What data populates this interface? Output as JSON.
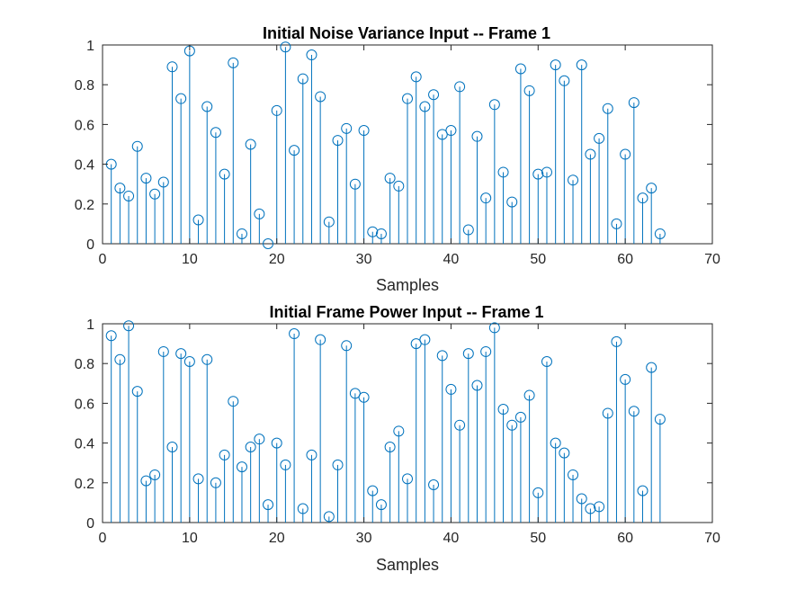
{
  "colors": {
    "series": "#0072bd",
    "axes": "#262626",
    "background": "#ffffff"
  },
  "chart_data": [
    {
      "type": "stem",
      "title": "Initial Noise Variance Input -- Frame 1",
      "xlabel": "Samples",
      "ylabel": "",
      "xlim": [
        0,
        70
      ],
      "ylim": [
        0,
        1
      ],
      "xticks": [
        0,
        10,
        20,
        30,
        40,
        50,
        60,
        70
      ],
      "yticks": [
        0,
        0.2,
        0.4,
        0.6,
        0.8,
        1
      ],
      "xtick_labels": [
        "0",
        "10",
        "20",
        "30",
        "40",
        "50",
        "60",
        "70"
      ],
      "ytick_labels": [
        "0",
        "0.2",
        "0.4",
        "0.6",
        "0.8",
        "1"
      ],
      "grid": false,
      "marker": "circle",
      "x": [
        1,
        2,
        3,
        4,
        5,
        6,
        7,
        8,
        9,
        10,
        11,
        12,
        13,
        14,
        15,
        16,
        17,
        18,
        19,
        20,
        21,
        22,
        23,
        24,
        25,
        26,
        27,
        28,
        29,
        30,
        31,
        32,
        33,
        34,
        35,
        36,
        37,
        38,
        39,
        40,
        41,
        42,
        43,
        44,
        45,
        46,
        47,
        48,
        49,
        50,
        51,
        52,
        53,
        54,
        55,
        56,
        57,
        58,
        59,
        60,
        61,
        62,
        63,
        64
      ],
      "values": [
        0.4,
        0.28,
        0.24,
        0.49,
        0.33,
        0.25,
        0.31,
        0.89,
        0.73,
        0.97,
        0.12,
        0.69,
        0.56,
        0.35,
        0.91,
        0.05,
        0.5,
        0.15,
        0.0,
        0.67,
        0.99,
        0.47,
        0.83,
        0.95,
        0.74,
        0.11,
        0.52,
        0.58,
        0.3,
        0.57,
        0.06,
        0.05,
        0.33,
        0.29,
        0.73,
        0.84,
        0.69,
        0.75,
        0.55,
        0.57,
        0.79,
        0.07,
        0.54,
        0.23,
        0.7,
        0.36,
        0.21,
        0.88,
        0.77,
        0.35,
        0.36,
        0.9,
        0.82,
        0.32,
        0.9,
        0.45,
        0.53,
        0.68,
        0.1,
        0.45,
        0.71,
        0.23,
        0.28,
        0.05
      ]
    },
    {
      "type": "stem",
      "title": "Initial Frame Power Input -- Frame 1",
      "xlabel": "Samples",
      "ylabel": "",
      "xlim": [
        0,
        70
      ],
      "ylim": [
        0,
        1
      ],
      "xticks": [
        0,
        10,
        20,
        30,
        40,
        50,
        60,
        70
      ],
      "yticks": [
        0,
        0.2,
        0.4,
        0.6,
        0.8,
        1
      ],
      "xtick_labels": [
        "0",
        "10",
        "20",
        "30",
        "40",
        "50",
        "60",
        "70"
      ],
      "ytick_labels": [
        "0",
        "0.2",
        "0.4",
        "0.6",
        "0.8",
        "1"
      ],
      "grid": false,
      "marker": "circle",
      "x": [
        1,
        2,
        3,
        4,
        5,
        6,
        7,
        8,
        9,
        10,
        11,
        12,
        13,
        14,
        15,
        16,
        17,
        18,
        19,
        20,
        21,
        22,
        23,
        24,
        25,
        26,
        27,
        28,
        29,
        30,
        31,
        32,
        33,
        34,
        35,
        36,
        37,
        38,
        39,
        40,
        41,
        42,
        43,
        44,
        45,
        46,
        47,
        48,
        49,
        50,
        51,
        52,
        53,
        54,
        55,
        56,
        57,
        58,
        59,
        60,
        61,
        62,
        63,
        64
      ],
      "values": [
        0.94,
        0.82,
        0.99,
        0.66,
        0.21,
        0.24,
        0.86,
        0.38,
        0.85,
        0.81,
        0.22,
        0.82,
        0.2,
        0.34,
        0.61,
        0.28,
        0.38,
        0.42,
        0.09,
        0.4,
        0.29,
        0.95,
        0.07,
        0.34,
        0.92,
        0.03,
        0.29,
        0.89,
        0.65,
        0.63,
        0.16,
        0.09,
        0.38,
        0.46,
        0.22,
        0.9,
        0.92,
        0.19,
        0.84,
        0.67,
        0.49,
        0.85,
        0.69,
        0.86,
        0.98,
        0.57,
        0.49,
        0.53,
        0.64,
        0.15,
        0.81,
        0.4,
        0.35,
        0.24,
        0.12,
        0.07,
        0.08,
        0.55,
        0.91,
        0.72,
        0.56,
        0.16,
        0.78,
        0.52
      ]
    }
  ]
}
